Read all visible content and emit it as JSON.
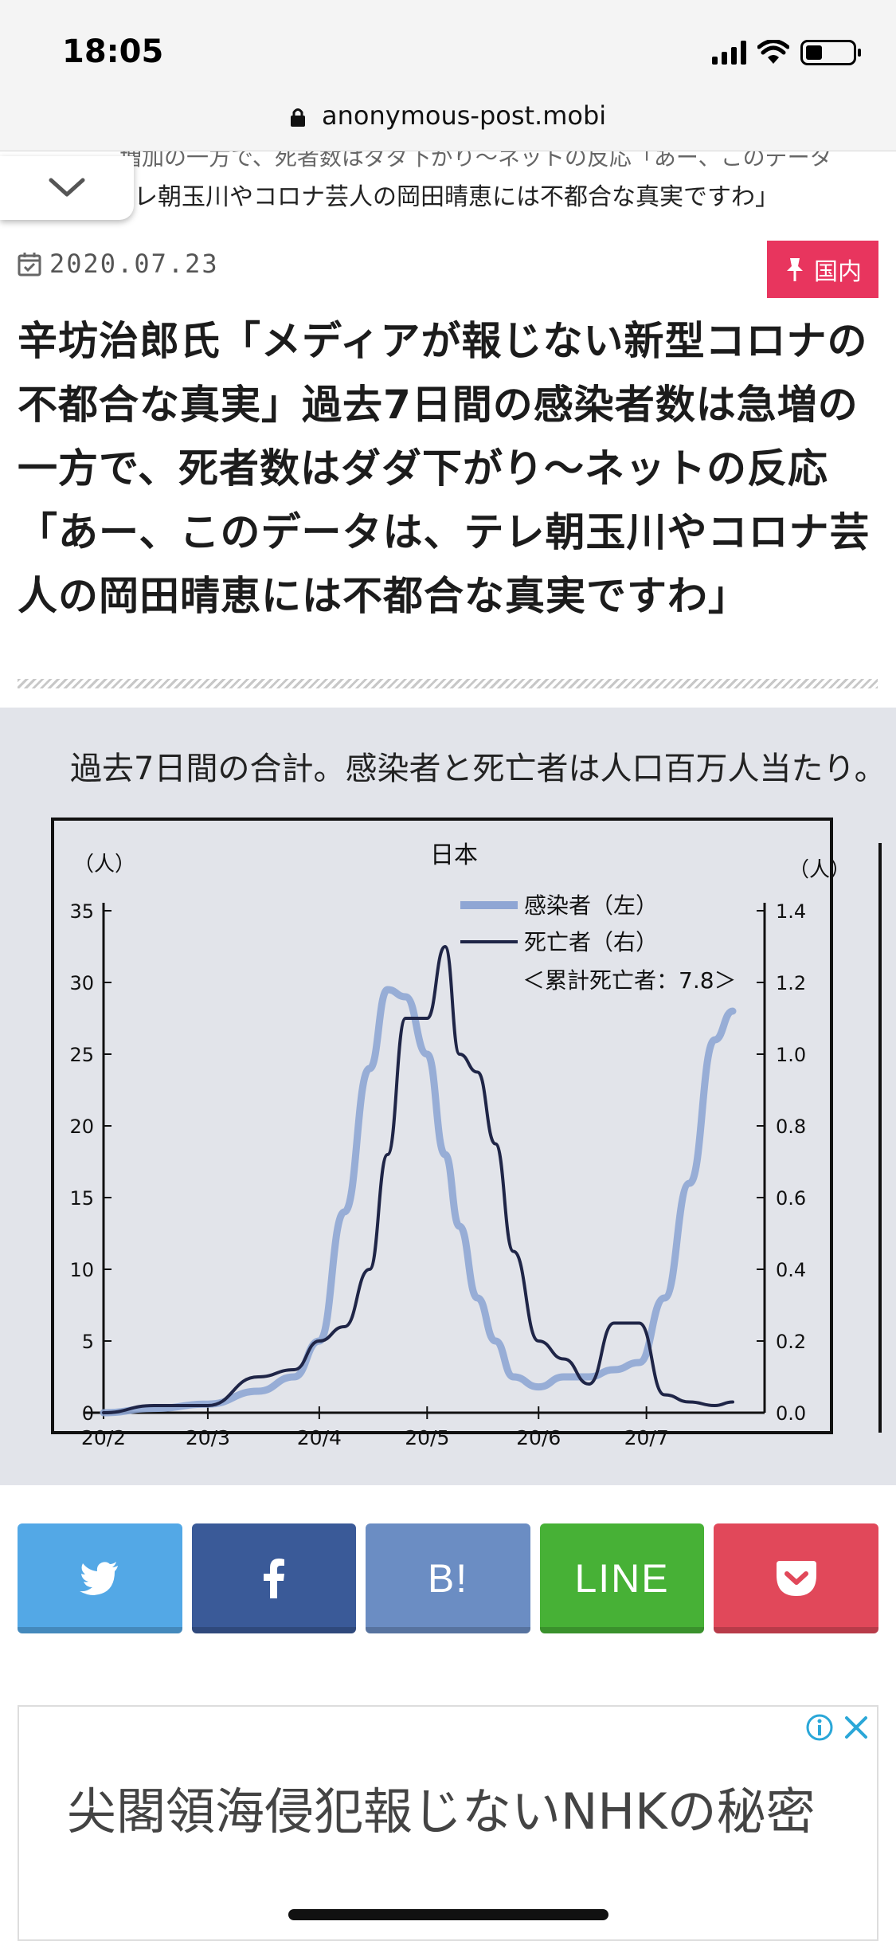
{
  "status": {
    "time": "18:05"
  },
  "browser": {
    "url": "anonymous-post.mobi"
  },
  "ticker": {
    "line1": "増加の一方で、死者数はダダ下がり〜ネットの反応「あー、このデータ",
    "line2": "レ朝玉川やコロナ芸人の岡田晴恵には不都合な真実ですわ」"
  },
  "article": {
    "date": "2020.07.23",
    "category": "国内",
    "title": "辛坊治郎氏「メディアが報じない新型コロナの不都合な真実」過去7日間の感染者数は急増の一方で、死者数はダダ下がり〜ネットの反応「あー、このデータは、テレ朝玉川やコロナ芸人の岡田晴恵には不都合な真実ですわ」"
  },
  "photo": {
    "caption": "過去7日間の合計。感染者と死亡者は人口百万人当たり。",
    "unit_left": "（人）",
    "unit_right": "（人）",
    "cumulative_note": "＜累計死亡者：7.8＞"
  },
  "chart_data": {
    "type": "line",
    "title": "日本",
    "xlabel": "",
    "ylabel_left": "（人）",
    "ylabel_right": "（人）",
    "x_ticks": [
      "20/2",
      "20/3",
      "20/4",
      "20/5",
      "20/6",
      "20/7"
    ],
    "y_left_ticks": [
      "0",
      "5",
      "10",
      "15",
      "20",
      "25",
      "30",
      "35"
    ],
    "y_right_ticks": [
      "0.0",
      "0.2",
      "0.4",
      "0.6",
      "0.8",
      "1.0",
      "1.2",
      "1.4"
    ],
    "ylim_left": [
      0,
      35
    ],
    "ylim_right": [
      0,
      1.4
    ],
    "x": [
      "02-01",
      "02-15",
      "03-01",
      "03-15",
      "03-25",
      "04-01",
      "04-08",
      "04-15",
      "04-20",
      "04-25",
      "05-01",
      "05-06",
      "05-10",
      "05-15",
      "05-20",
      "05-25",
      "06-01",
      "06-08",
      "06-15",
      "06-22",
      "06-29",
      "07-06",
      "07-13",
      "07-20",
      "07-25"
    ],
    "series": [
      {
        "name": "感染者（左）",
        "axis": "left",
        "color": "#8fa6d4",
        "values": [
          0,
          0.3,
          0.6,
          1.5,
          2.5,
          5,
          14,
          24,
          29.5,
          29,
          25,
          18,
          13,
          8,
          5,
          2.5,
          1.8,
          2.5,
          2.5,
          3,
          3.5,
          8,
          16,
          26,
          28
        ]
      },
      {
        "name": "死亡者（右）",
        "axis": "right",
        "color": "#1f2547",
        "values": [
          0,
          0.02,
          0.02,
          0.1,
          0.12,
          0.2,
          0.24,
          0.4,
          0.72,
          1.1,
          1.1,
          1.3,
          1.0,
          0.95,
          0.75,
          0.45,
          0.2,
          0.15,
          0.08,
          0.25,
          0.25,
          0.05,
          0.03,
          0.02,
          0.03
        ]
      }
    ],
    "legend": "top-right",
    "grid": false
  },
  "share": {
    "twitter": {
      "color": "#53a8e6"
    },
    "facebook": {
      "color": "#3a5a98"
    },
    "hatena": {
      "label": "B!",
      "color": "#6b8dc3"
    },
    "line": {
      "label": "LINE",
      "color": "#47b136"
    },
    "pocket": {
      "color": "#e1485a"
    }
  },
  "ad": {
    "title": "尖閣領海侵犯報じないNHKの秘密"
  }
}
